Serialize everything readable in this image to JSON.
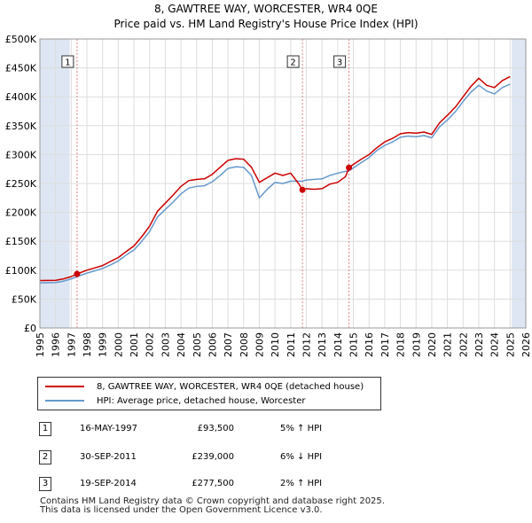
{
  "title": "8, GAWTREE WAY, WORCESTER, WR4 0QE",
  "subtitle": "Price paid vs. HM Land Registry's House Price Index (HPI)",
  "colors": {
    "property_line": "#cc0000",
    "hpi_line": "#6699cc",
    "marker": "#cc0000",
    "vline": "#e88080",
    "shade": "#dde6f2",
    "grid": "#dddddd"
  },
  "chart_data": {
    "type": "line",
    "title": "8, GAWTREE WAY, WORCESTER, WR4 0QE",
    "subtitle": "Price paid vs. HM Land Registry's House Price Index (HPI)",
    "xlim": [
      1995,
      2026
    ],
    "ylim": [
      0,
      500000
    ],
    "x_ticks": [
      "1995",
      "1996",
      "1997",
      "1998",
      "1999",
      "2000",
      "2001",
      "2002",
      "2003",
      "2004",
      "2005",
      "2006",
      "2007",
      "2008",
      "2009",
      "2010",
      "2011",
      "2012",
      "2013",
      "2014",
      "2015",
      "2016",
      "2017",
      "2018",
      "2019",
      "2020",
      "2021",
      "2022",
      "2023",
      "2024",
      "2025",
      "2026"
    ],
    "y_ticks": [
      "£0",
      "£50K",
      "£100K",
      "£150K",
      "£200K",
      "£250K",
      "£300K",
      "£350K",
      "£400K",
      "£450K",
      "£500K"
    ],
    "shaded_ranges": [
      [
        1995.0,
        1996.9
      ],
      [
        2025.1,
        2026.0
      ]
    ],
    "series": [
      {
        "name": "8, GAWTREE WAY, WORCESTER, WR4 0QE (detached house)",
        "x": [
          1995.0,
          1996.0,
          1996.5,
          1997.0,
          1997.37,
          1998.0,
          1998.5,
          1999.0,
          1999.5,
          2000.0,
          2000.5,
          2001.0,
          2001.5,
          2002.0,
          2002.5,
          2003.0,
          2003.5,
          2004.0,
          2004.5,
          2005.0,
          2005.5,
          2006.0,
          2006.5,
          2007.0,
          2007.5,
          2008.0,
          2008.5,
          2009.0,
          2009.5,
          2010.0,
          2010.5,
          2011.0,
          2011.5,
          2011.75,
          2012.0,
          2012.5,
          2013.0,
          2013.5,
          2014.0,
          2014.5,
          2014.72,
          2015.0,
          2015.5,
          2016.0,
          2016.5,
          2017.0,
          2017.5,
          2018.0,
          2018.5,
          2019.0,
          2019.5,
          2020.0,
          2020.5,
          2021.0,
          2021.5,
          2022.0,
          2022.5,
          2023.0,
          2023.5,
          2024.0,
          2024.5,
          2025.0
        ],
        "values": [
          82000,
          82500,
          85000,
          89000,
          93500,
          100000,
          104000,
          108000,
          115000,
          122000,
          132000,
          142000,
          158000,
          176000,
          202000,
          216000,
          230000,
          245000,
          255000,
          257000,
          258000,
          266000,
          278000,
          290000,
          293000,
          292000,
          278000,
          252000,
          260000,
          268000,
          264000,
          268000,
          250000,
          239000,
          241000,
          240000,
          241000,
          249000,
          252000,
          262000,
          277500,
          283000,
          292000,
          300000,
          312000,
          322000,
          328000,
          336000,
          338000,
          337000,
          339000,
          335000,
          355000,
          368000,
          382000,
          400000,
          418000,
          432000,
          420000,
          416000,
          428000,
          435000
        ]
      },
      {
        "name": "HPI: Average price, detached house, Worcester",
        "x": [
          1995.0,
          1996.0,
          1996.5,
          1997.0,
          1997.37,
          1998.0,
          1998.5,
          1999.0,
          1999.5,
          2000.0,
          2000.5,
          2001.0,
          2001.5,
          2002.0,
          2002.5,
          2003.0,
          2003.5,
          2004.0,
          2004.5,
          2005.0,
          2005.5,
          2006.0,
          2006.5,
          2007.0,
          2007.5,
          2008.0,
          2008.5,
          2009.0,
          2009.5,
          2010.0,
          2010.5,
          2011.0,
          2011.5,
          2011.75,
          2012.0,
          2012.5,
          2013.0,
          2013.5,
          2014.0,
          2014.5,
          2014.72,
          2015.0,
          2015.5,
          2016.0,
          2016.5,
          2017.0,
          2017.5,
          2018.0,
          2018.5,
          2019.0,
          2019.5,
          2020.0,
          2020.5,
          2021.0,
          2021.5,
          2022.0,
          2022.5,
          2023.0,
          2023.5,
          2024.0,
          2024.5,
          2025.0
        ],
        "values": [
          78000,
          78500,
          81000,
          85000,
          89000,
          95000,
          99000,
          103000,
          109000,
          116000,
          126000,
          135000,
          150000,
          167000,
          192000,
          205000,
          218000,
          232000,
          242000,
          245000,
          246000,
          253000,
          264000,
          276000,
          279000,
          278000,
          264000,
          225000,
          240000,
          252000,
          250000,
          254000,
          254000,
          254000,
          256000,
          257000,
          258000,
          264000,
          268000,
          271000,
          272000,
          277000,
          286000,
          295000,
          307000,
          316000,
          322000,
          330000,
          332000,
          331000,
          333000,
          329000,
          348000,
          360000,
          374000,
          392000,
          408000,
          420000,
          410000,
          405000,
          416000,
          422000
        ]
      }
    ],
    "markers": [
      {
        "label": "1",
        "x": 1997.37,
        "value": 93500
      },
      {
        "label": "2",
        "x": 2011.75,
        "value": 239000
      },
      {
        "label": "3",
        "x": 2014.72,
        "value": 277500
      }
    ]
  },
  "legend": {
    "items": [
      {
        "label": "8, GAWTREE WAY, WORCESTER, WR4 0QE (detached house)"
      },
      {
        "label": "HPI: Average price, detached house, Worcester"
      }
    ]
  },
  "transactions": [
    {
      "num": "1",
      "date": "16-MAY-1997",
      "price": "£93,500",
      "hpi": "5% ↑ HPI"
    },
    {
      "num": "2",
      "date": "30-SEP-2011",
      "price": "£239,000",
      "hpi": "6% ↓ HPI"
    },
    {
      "num": "3",
      "date": "19-SEP-2014",
      "price": "£277,500",
      "hpi": "2% ↑ HPI"
    }
  ],
  "footer": {
    "line1": "Contains HM Land Registry data © Crown copyright and database right 2025.",
    "line2": "This data is licensed under the Open Government Licence v3.0."
  }
}
